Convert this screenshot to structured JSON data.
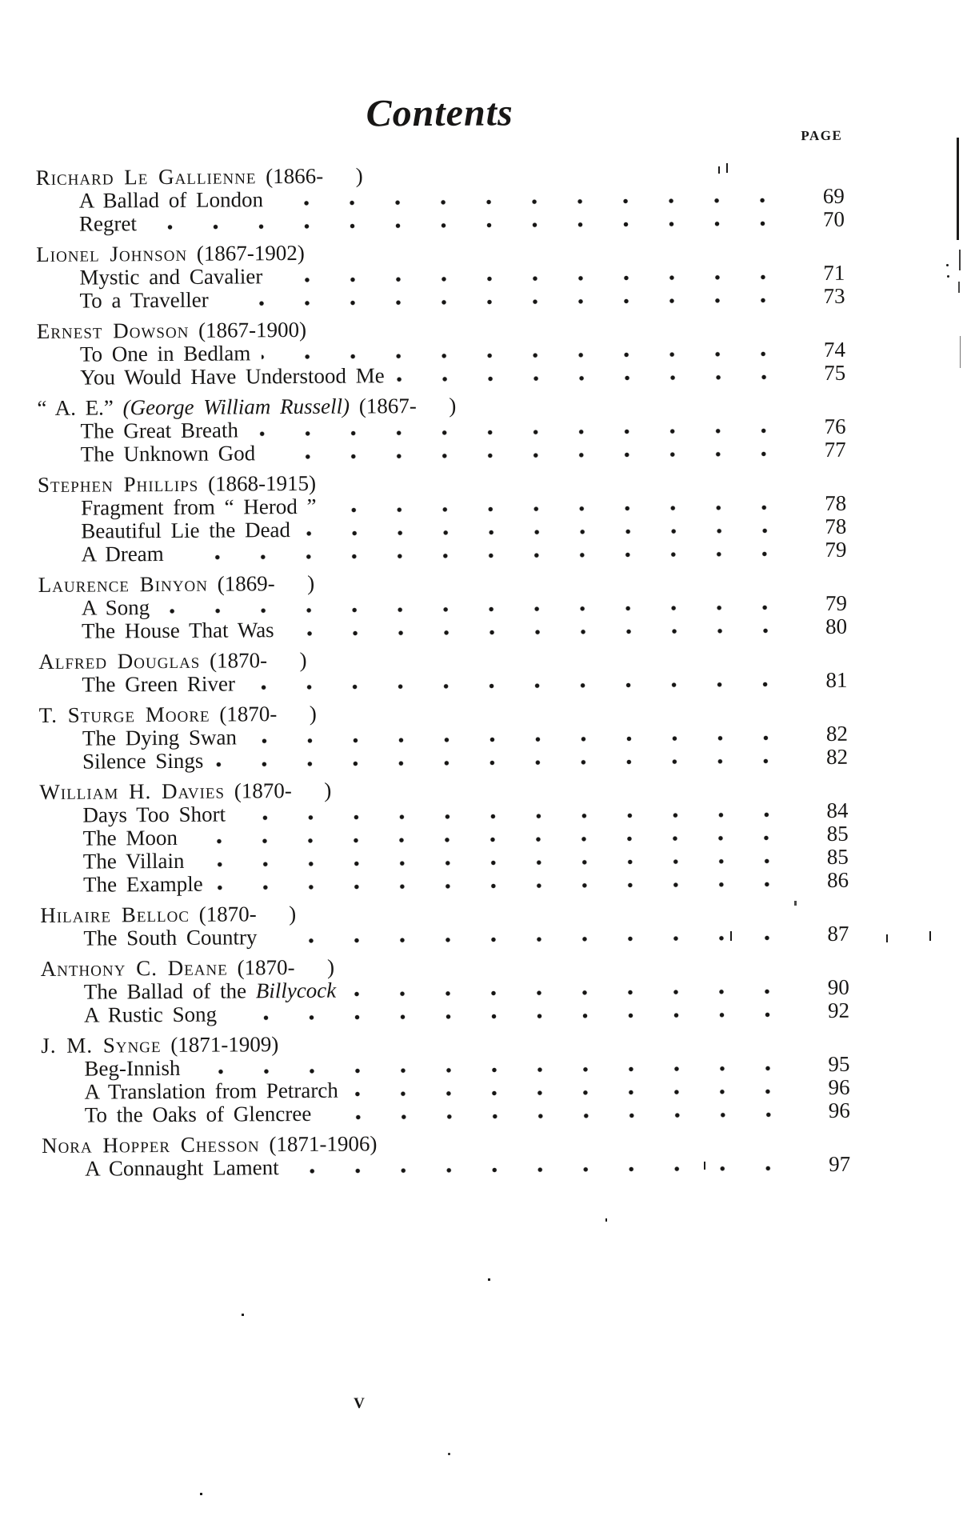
{
  "page": {
    "title": "Contents",
    "page_column_header": "PAGE",
    "folio": "v"
  },
  "toc": {
    "sections": [
      {
        "author": [
          {
            "t": "Richard Le Gallienne",
            "s": "sc"
          },
          {
            "t": " (1866-  )",
            "s": "p"
          }
        ],
        "poems": [
          {
            "title": [
              {
                "t": "A Ballad of London",
                "s": "p"
              }
            ],
            "page": "69"
          },
          {
            "title": [
              {
                "t": "Regret",
                "s": "p"
              }
            ],
            "page": "70"
          }
        ]
      },
      {
        "author": [
          {
            "t": "Lionel Johnson",
            "s": "sc"
          },
          {
            "t": " (1867-1902)",
            "s": "p"
          }
        ],
        "poems": [
          {
            "title": [
              {
                "t": "Mystic and Cavalier",
                "s": "p"
              }
            ],
            "page": "71"
          },
          {
            "title": [
              {
                "t": "To a Traveller",
                "s": "p"
              }
            ],
            "page": "73"
          }
        ]
      },
      {
        "author": [
          {
            "t": "Ernest Dowson",
            "s": "sc"
          },
          {
            "t": " (1867-1900)",
            "s": "p"
          }
        ],
        "poems": [
          {
            "title": [
              {
                "t": "To One in Bedlam",
                "s": "p"
              }
            ],
            "page": "74"
          },
          {
            "title": [
              {
                "t": "You Would Have Understood Me",
                "s": "p"
              }
            ],
            "page": "75"
          }
        ]
      },
      {
        "author": [
          {
            "t": "“ A. E.” ",
            "s": "p"
          },
          {
            "t": "(George William Russell)",
            "s": "i"
          },
          {
            "t": " (1867-  )",
            "s": "p"
          }
        ],
        "poems": [
          {
            "title": [
              {
                "t": "The Great Breath",
                "s": "p"
              }
            ],
            "page": "76"
          },
          {
            "title": [
              {
                "t": "The Unknown God",
                "s": "p"
              }
            ],
            "page": "77"
          }
        ]
      },
      {
        "author": [
          {
            "t": "Stephen Phillips",
            "s": "sc"
          },
          {
            "t": " (1868-1915)",
            "s": "p"
          }
        ],
        "poems": [
          {
            "title": [
              {
                "t": "Fragment from “ Herod ”",
                "s": "p"
              }
            ],
            "page": "78"
          },
          {
            "title": [
              {
                "t": "Beautiful Lie the Dead",
                "s": "p"
              }
            ],
            "page": "78"
          },
          {
            "title": [
              {
                "t": "A Dream",
                "s": "p"
              }
            ],
            "page": "79"
          }
        ]
      },
      {
        "author": [
          {
            "t": "Laurence Binyon",
            "s": "sc"
          },
          {
            "t": " (1869-  )",
            "s": "p"
          }
        ],
        "poems": [
          {
            "title": [
              {
                "t": "A Song",
                "s": "p"
              }
            ],
            "page": "79"
          },
          {
            "title": [
              {
                "t": "The House That Was",
                "s": "p"
              }
            ],
            "page": "80"
          }
        ]
      },
      {
        "author": [
          {
            "t": "Alfred Douglas",
            "s": "sc"
          },
          {
            "t": " (1870-  )",
            "s": "p"
          }
        ],
        "poems": [
          {
            "title": [
              {
                "t": "The Green River",
                "s": "p"
              }
            ],
            "page": "81"
          }
        ]
      },
      {
        "author": [
          {
            "t": "T. Sturge Moore",
            "s": "sc"
          },
          {
            "t": " (1870-  )",
            "s": "p"
          }
        ],
        "poems": [
          {
            "title": [
              {
                "t": "The Dying Swan",
                "s": "p"
              }
            ],
            "page": "82"
          },
          {
            "title": [
              {
                "t": "Silence Sings",
                "s": "p"
              }
            ],
            "page": "82"
          }
        ]
      },
      {
        "author": [
          {
            "t": "William H. Davies",
            "s": "sc"
          },
          {
            "t": " (1870-  )",
            "s": "p"
          }
        ],
        "poems": [
          {
            "title": [
              {
                "t": "Days Too Short",
                "s": "p"
              }
            ],
            "page": "84"
          },
          {
            "title": [
              {
                "t": "The Moon",
                "s": "p"
              }
            ],
            "page": "85"
          },
          {
            "title": [
              {
                "t": "The Villain",
                "s": "p"
              }
            ],
            "page": "85"
          },
          {
            "title": [
              {
                "t": "The Example",
                "s": "p"
              }
            ],
            "page": "86"
          }
        ]
      },
      {
        "author": [
          {
            "t": "Hilaire Belloc",
            "s": "sc"
          },
          {
            "t": " (1870-  )",
            "s": "p"
          }
        ],
        "poems": [
          {
            "title": [
              {
                "t": "The South Country",
                "s": "p"
              }
            ],
            "page": "87"
          }
        ]
      },
      {
        "author": [
          {
            "t": "Anthony C. Deane",
            "s": "sc"
          },
          {
            "t": " (1870-  )",
            "s": "p"
          }
        ],
        "poems": [
          {
            "title": [
              {
                "t": "The Ballad of the ",
                "s": "p"
              },
              {
                "t": "Billycock",
                "s": "i"
              }
            ],
            "page": "90"
          },
          {
            "title": [
              {
                "t": "A Rustic Song",
                "s": "p"
              }
            ],
            "page": "92"
          }
        ]
      },
      {
        "author": [
          {
            "t": "J. M. Synge",
            "s": "sc"
          },
          {
            "t": " (1871-1909)",
            "s": "p"
          }
        ],
        "poems": [
          {
            "title": [
              {
                "t": "Beg-Innish",
                "s": "p"
              }
            ],
            "page": "95"
          },
          {
            "title": [
              {
                "t": "A Translation from Petrarch",
                "s": "p"
              }
            ],
            "page": "96"
          },
          {
            "title": [
              {
                "t": "To the Oaks of Glencree",
                "s": "p"
              }
            ],
            "page": "96"
          }
        ]
      },
      {
        "author": [
          {
            "t": "Nora Hopper Chesson",
            "s": "sc"
          },
          {
            "t": " (1871-1906)",
            "s": "p"
          }
        ],
        "poems": [
          {
            "title": [
              {
                "t": "A Connaught Lament",
                "s": "p"
              }
            ],
            "page": "97"
          }
        ]
      }
    ]
  }
}
